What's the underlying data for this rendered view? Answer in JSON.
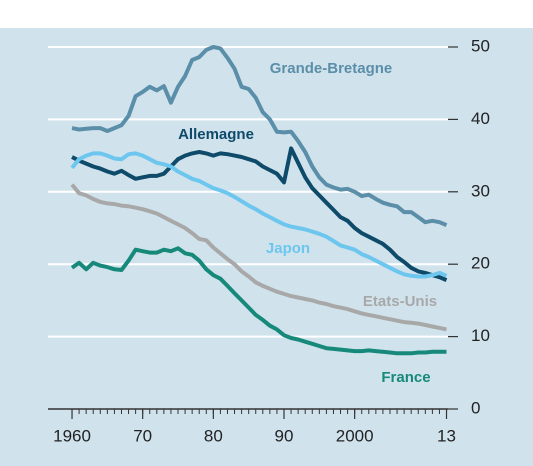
{
  "chart_data": {
    "type": "line",
    "x": [
      1960,
      1961,
      1962,
      1963,
      1964,
      1965,
      1966,
      1967,
      1968,
      1969,
      1970,
      1971,
      1972,
      1973,
      1974,
      1975,
      1976,
      1977,
      1978,
      1979,
      1980,
      1981,
      1982,
      1983,
      1984,
      1985,
      1986,
      1987,
      1988,
      1989,
      1990,
      1991,
      1992,
      1993,
      1994,
      1995,
      1996,
      1997,
      1998,
      1999,
      2000,
      2001,
      2002,
      2003,
      2004,
      2005,
      2006,
      2007,
      2008,
      2009,
      2010,
      2011,
      2012,
      2013
    ],
    "series": [
      {
        "name": "Grande-Bretagne",
        "color": "#5b8ea8",
        "values": [
          38.8,
          38.6,
          38.7,
          38.8,
          38.8,
          38.4,
          38.8,
          39.2,
          40.5,
          43.2,
          43.8,
          44.5,
          44.0,
          44.6,
          42.3,
          44.5,
          46.0,
          48.2,
          48.6,
          49.6,
          50.0,
          49.8,
          48.5,
          47.0,
          44.5,
          44.2,
          43.0,
          41.0,
          40.0,
          38.3,
          38.2,
          38.3,
          37.0,
          35.5,
          33.5,
          32.0,
          31.0,
          30.6,
          30.3,
          30.4,
          30.0,
          29.4,
          29.6,
          29.0,
          28.5,
          28.2,
          28.0,
          27.2,
          27.2,
          26.5,
          25.8,
          26.0,
          25.8,
          25.4
        ]
      },
      {
        "name": "Allemagne",
        "color": "#0e4a6a",
        "values": [
          34.8,
          34.3,
          33.9,
          33.5,
          33.2,
          32.8,
          32.5,
          32.9,
          32.3,
          31.8,
          32.0,
          32.2,
          32.2,
          32.5,
          33.5,
          34.5,
          35.0,
          35.3,
          35.5,
          35.3,
          35.0,
          35.3,
          35.2,
          35.0,
          34.8,
          34.5,
          34.2,
          33.5,
          33.0,
          32.5,
          31.3,
          36.0,
          34.0,
          32.0,
          30.5,
          29.5,
          28.5,
          27.5,
          26.5,
          26.0,
          25.0,
          24.3,
          23.8,
          23.3,
          22.8,
          22.0,
          21.0,
          20.3,
          19.5,
          19.0,
          18.8,
          18.5,
          18.2,
          17.8
        ]
      },
      {
        "name": "Japon",
        "color": "#6cc6ee",
        "values": [
          33.3,
          34.5,
          35.0,
          35.3,
          35.3,
          35.0,
          34.6,
          34.5,
          35.2,
          35.3,
          35.0,
          34.5,
          34.0,
          33.8,
          33.5,
          32.8,
          32.3,
          31.8,
          31.5,
          31.0,
          30.5,
          30.2,
          29.8,
          29.3,
          28.7,
          28.1,
          27.6,
          27.0,
          26.5,
          26.0,
          25.5,
          25.2,
          25.0,
          24.8,
          24.5,
          24.2,
          23.8,
          23.2,
          22.6,
          22.3,
          22.0,
          21.4,
          21.0,
          20.5,
          20.0,
          19.5,
          19.0,
          18.6,
          18.4,
          18.3,
          18.3,
          18.5,
          18.8,
          18.4
        ]
      },
      {
        "name": "Etats-Unis",
        "color": "#a8a8a8",
        "values": [
          31.0,
          29.8,
          29.5,
          29.0,
          28.6,
          28.4,
          28.3,
          28.1,
          28.0,
          27.8,
          27.6,
          27.3,
          27.0,
          26.5,
          26.0,
          25.5,
          25.0,
          24.3,
          23.5,
          23.3,
          22.3,
          21.5,
          20.7,
          20.0,
          19.0,
          18.3,
          17.5,
          17.0,
          16.6,
          16.2,
          15.9,
          15.6,
          15.4,
          15.2,
          15.0,
          14.7,
          14.5,
          14.2,
          14.0,
          13.8,
          13.5,
          13.2,
          13.0,
          12.8,
          12.6,
          12.4,
          12.2,
          12.0,
          11.9,
          11.8,
          11.6,
          11.4,
          11.2,
          11.0
        ]
      },
      {
        "name": "France",
        "color": "#16897a",
        "values": [
          19.5,
          20.2,
          19.3,
          20.2,
          19.8,
          19.6,
          19.3,
          19.2,
          20.5,
          22.0,
          21.8,
          21.6,
          21.6,
          22.0,
          21.8,
          22.2,
          21.5,
          21.3,
          20.5,
          19.3,
          18.5,
          18.0,
          17.0,
          16.0,
          15.0,
          14.0,
          13.0,
          12.3,
          11.5,
          11.0,
          10.2,
          9.8,
          9.6,
          9.3,
          9.0,
          8.7,
          8.4,
          8.3,
          8.2,
          8.1,
          8.0,
          8.0,
          8.1,
          8.0,
          7.9,
          7.8,
          7.7,
          7.7,
          7.7,
          7.8,
          7.8,
          7.9,
          7.9,
          7.9
        ]
      }
    ],
    "xlim": [
      1956.6,
      2014.2
    ],
    "xticks": [
      1960,
      {
        "value": 1970,
        "label": "70"
      },
      {
        "value": 1980,
        "label": "80"
      },
      {
        "value": 1990,
        "label": "90"
      },
      2000,
      {
        "value": 2013,
        "label": "13"
      }
    ],
    "ylim": [
      0,
      50
    ],
    "yticks": [
      0,
      10,
      20,
      30,
      40,
      50
    ],
    "grid": true
  }
}
